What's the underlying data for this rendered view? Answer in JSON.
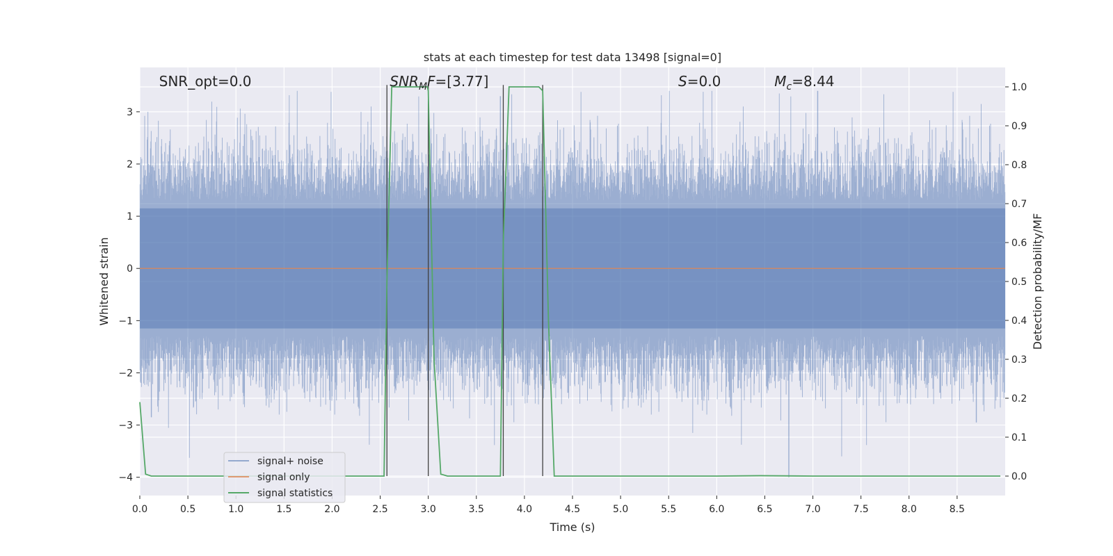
{
  "chart_data": {
    "type": "line",
    "title": "stats at each timestep for test data 13498 [signal=0]",
    "xlabel": "Time (s)",
    "ylabel_left": "Whitened strain",
    "ylabel_right": "Detection probability/MF",
    "xlim": [
      0,
      9.0
    ],
    "ylim_left": [
      -4.35,
      3.85
    ],
    "ylim_right": [
      -0.05,
      1.05
    ],
    "x_ticks": [
      0.0,
      0.5,
      1.0,
      1.5,
      2.0,
      2.5,
      3.0,
      3.5,
      4.0,
      4.5,
      5.0,
      5.5,
      6.0,
      6.5,
      7.0,
      7.5,
      8.0,
      8.5
    ],
    "x_tick_labels": [
      "0.0",
      "0.5",
      "1.0",
      "1.5",
      "2.0",
      "2.5",
      "3.0",
      "3.5",
      "4.0",
      "4.5",
      "5.0",
      "5.5",
      "6.0",
      "6.5",
      "7.0",
      "7.5",
      "8.0",
      "8.5"
    ],
    "y_left_ticks": [
      -4,
      -3,
      -2,
      -1,
      0,
      1,
      2,
      3
    ],
    "y_left_tick_labels": [
      "−4",
      "−3",
      "−2",
      "−1",
      "0",
      "1",
      "2",
      "3"
    ],
    "y_right_ticks": [
      0.0,
      0.1,
      0.2,
      0.3,
      0.4,
      0.5,
      0.6,
      0.7,
      0.8,
      0.9,
      1.0
    ],
    "y_right_tick_labels": [
      "0.0",
      "0.1",
      "0.2",
      "0.3",
      "0.4",
      "0.5",
      "0.6",
      "0.7",
      "0.8",
      "0.9",
      "1.0"
    ],
    "grid": true,
    "legend_placement": "lower-left",
    "colors": {
      "background": "#eaeaf2",
      "grid": "#ffffff",
      "noise": "#4c72b0",
      "signal_only": "#dd8452",
      "stats": "#55a868",
      "vlines": "#404040"
    },
    "series": [
      {
        "name": "signal+ noise",
        "kind": "noise-band",
        "axis": "left",
        "note_values": "dense whitened-strain noise; envelope peaks near +3.4 and -4.0",
        "peaks_high": [
          [
            2.3,
            3.0
          ],
          [
            3.75,
            3.3
          ],
          [
            5.95,
            3.4
          ],
          [
            6.65,
            3.35
          ],
          [
            7.05,
            3.4
          ],
          [
            8.75,
            3.15
          ]
        ],
        "peaks_low": [
          [
            0.12,
            -2.85
          ],
          [
            5.75,
            -3.15
          ],
          [
            6.75,
            -4.0
          ],
          [
            7.3,
            -3.6
          ],
          [
            8.7,
            -2.95
          ]
        ]
      },
      {
        "name": "signal only",
        "kind": "line",
        "axis": "left",
        "x": [
          0.0,
          9.0
        ],
        "y": [
          0.0,
          0.0
        ]
      },
      {
        "name": "signal statistics",
        "kind": "line",
        "axis": "right",
        "x": [
          0.0,
          0.06,
          0.12,
          0.5,
          1.0,
          1.5,
          2.0,
          2.54,
          2.57,
          2.62,
          2.7,
          2.99,
          3.0,
          3.06,
          3.13,
          3.2,
          3.5,
          3.75,
          3.78,
          3.84,
          3.95,
          4.15,
          4.19,
          4.25,
          4.31,
          4.5,
          5.0,
          5.5,
          6.0,
          6.45,
          7.0,
          7.5,
          8.0,
          8.5,
          8.95
        ],
        "y": [
          0.19,
          0.005,
          0.0,
          0.0,
          0.0,
          0.0,
          0.0,
          0.0,
          0.5,
          1.0,
          1.0,
          1.0,
          0.99,
          0.3,
          0.005,
          0.0,
          0.0,
          0.0,
          0.6,
          1.0,
          1.0,
          1.0,
          0.99,
          0.4,
          0.0,
          0.0,
          0.0,
          0.0,
          0.0,
          0.001,
          0.0,
          0.0,
          0.0,
          0.0,
          0.0
        ]
      }
    ],
    "vertical_lines_x": [
      2.57,
      3.0,
      3.78,
      4.19
    ],
    "annotations": [
      {
        "text": "SNR_opt=0.0",
        "x": 0.2
      },
      {
        "main": "SNR",
        "sub": "M",
        "rest": "F=[3.77]",
        "x": 2.6
      },
      {
        "main": "S",
        "sub": "",
        "rest": "=0.0",
        "x": 5.6
      },
      {
        "main": "M",
        "sub": "c",
        "rest": "=8.44",
        "x": 6.6
      }
    ]
  }
}
